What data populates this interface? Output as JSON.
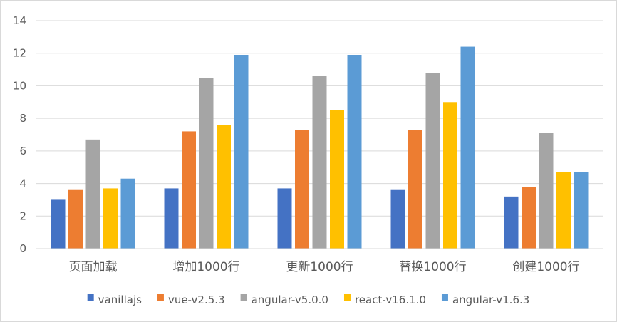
{
  "chart_data": {
    "type": "bar",
    "categories": [
      "页面加载",
      "增加1000行",
      "更新1000行",
      "替换1000行",
      "创建1000行"
    ],
    "series": [
      {
        "name": "vanillajs",
        "color": "#4472C4",
        "values": [
          3.0,
          3.7,
          3.7,
          3.6,
          3.2
        ]
      },
      {
        "name": "vue-v2.5.3",
        "color": "#ED7D31",
        "values": [
          3.6,
          7.2,
          7.3,
          7.3,
          3.8
        ]
      },
      {
        "name": "angular-v5.0.0",
        "color": "#A5A5A5",
        "values": [
          6.7,
          10.5,
          10.6,
          10.8,
          7.1
        ]
      },
      {
        "name": "react-v16.1.0",
        "color": "#FFC000",
        "values": [
          3.7,
          7.6,
          8.5,
          9.0,
          4.7
        ]
      },
      {
        "name": "angular-v1.6.3",
        "color": "#5B9BD5",
        "values": [
          4.3,
          11.9,
          11.9,
          12.4,
          4.7
        ]
      }
    ],
    "yticks": [
      "0",
      "2",
      "4",
      "6",
      "8",
      "10",
      "12",
      "14"
    ],
    "ylim": [
      0,
      14
    ],
    "grid": true,
    "legend_position": "bottom",
    "title": "",
    "xlabel": "",
    "ylabel": ""
  }
}
